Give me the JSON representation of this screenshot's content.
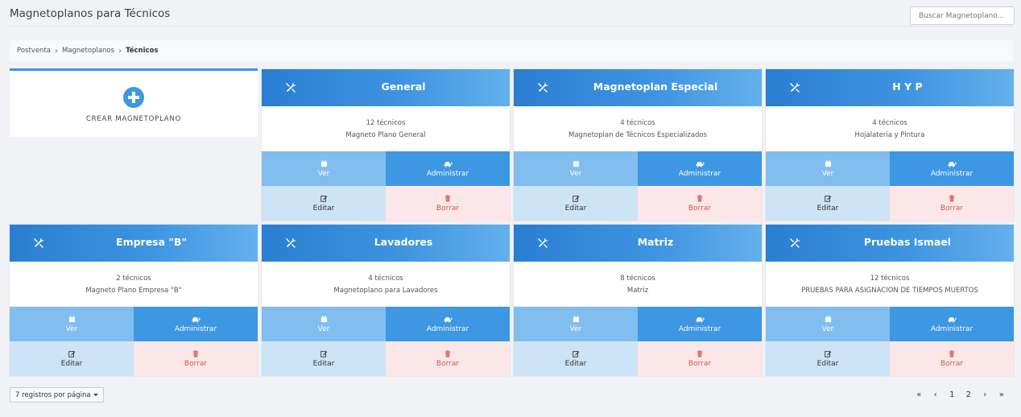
{
  "header": {
    "title": "Magnetoplanos para Técnicos",
    "search_placeholder": "Buscar Magnetoplano..."
  },
  "breadcrumb": {
    "items": [
      "Postventa",
      "Magnetoplanos",
      "Técnicos"
    ]
  },
  "create_card": {
    "label": "CREAR MAGNETOPLANO",
    "icon": "plus-circle-icon"
  },
  "actions": {
    "view": "Ver",
    "manage": "Administrar",
    "edit": "Editar",
    "delete": "Borrar"
  },
  "cards": [
    {
      "title": "General",
      "count": "12 técnicos",
      "description": "Magneto Plano General"
    },
    {
      "title": "Magnetoplan Especial",
      "count": "4 técnicos",
      "description": "Magnetoplan de Técnicos Especializados"
    },
    {
      "title": "H Y P",
      "count": "4 técnicos",
      "description": "Hojalateria y Pintura"
    },
    {
      "title": "Empresa \"B\"",
      "count": "2 técnicos",
      "description": "Magneto Plano Empresa \"B\""
    },
    {
      "title": "Lavadores",
      "count": "4 técnicos",
      "description": "Magnetoplano para Lavadores"
    },
    {
      "title": "Matriz",
      "count": "8 técnicos",
      "description": "Matriz"
    },
    {
      "title": "Pruebas Ismael",
      "count": "12 técnicos",
      "description": "PRUEBAS PARA ASIGNACION DE TIEMPOS MUERTOS"
    }
  ],
  "footer": {
    "per_page": "7 registros por página",
    "pager": {
      "first": "«",
      "prev": "‹",
      "pages": [
        "1",
        "2"
      ],
      "next": "›",
      "last": "»"
    }
  },
  "colors": {
    "accent": "#3d97e2",
    "view_button": "#82bdef",
    "edit_button": "#cde3f6",
    "delete_button": "#fbe7e7",
    "delete_text": "#d9534f"
  }
}
